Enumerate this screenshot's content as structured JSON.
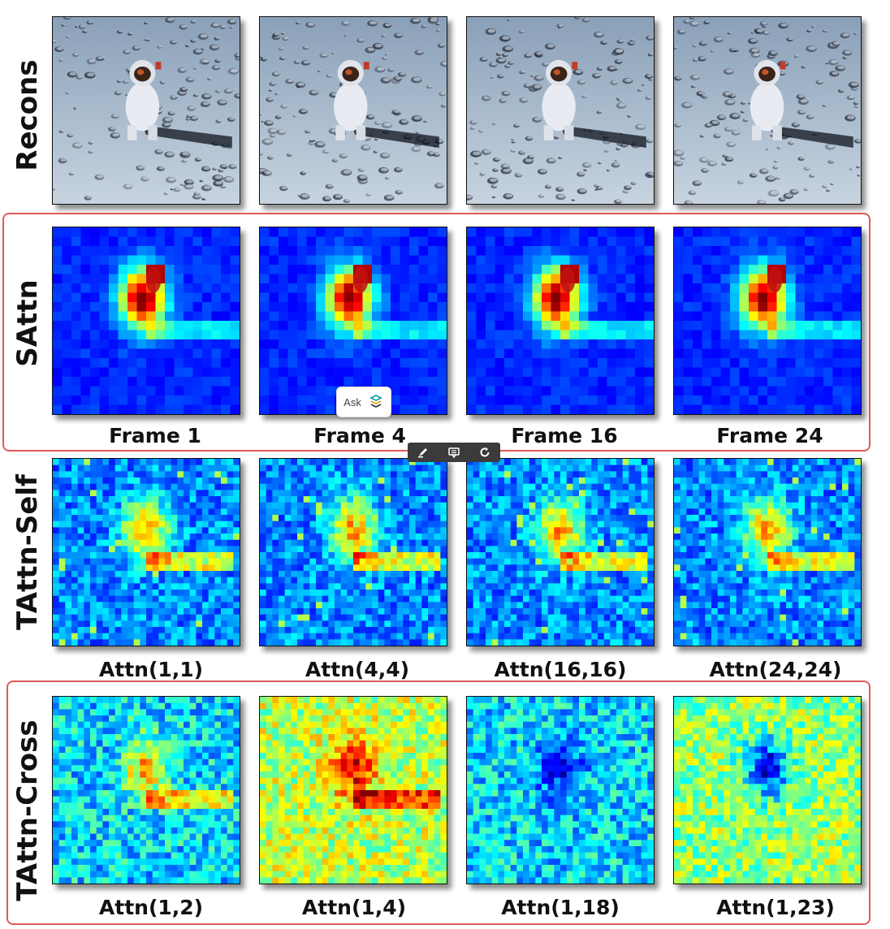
{
  "rows": [
    {
      "label": "Recons",
      "kind": "recon",
      "captions": []
    },
    {
      "label": "SAttn",
      "kind": "sattn",
      "captions": [
        "Frame 1",
        "Frame 4",
        "Frame 16",
        "Frame 24"
      ]
    },
    {
      "label": "TAttn-Self",
      "kind": "tself",
      "captions": [
        "Attn(1,1)",
        "Attn(4,4)",
        "Attn(16,16)",
        "Attn(24,24)"
      ]
    },
    {
      "label": "TAttn-Cross",
      "kind": "tcross",
      "captions": [
        "Attn(1,2)",
        "Attn(1,4)",
        "Attn(1,18)",
        "Attn(1,23)"
      ]
    }
  ],
  "highlight_color": "#e05a5a",
  "overlay": {
    "ask_label": "Ask",
    "ask_icon": "ask-ai-icon",
    "toolbar_icons": [
      "highlight-icon",
      "comment-icon",
      "refresh-icon"
    ]
  }
}
